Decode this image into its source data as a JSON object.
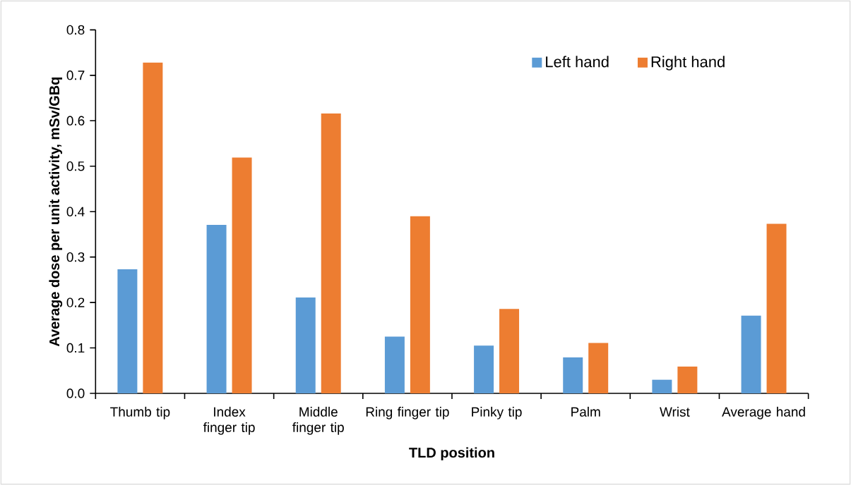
{
  "chart_data": {
    "type": "bar",
    "xlabel": "TLD position",
    "ylabel": "Average dose per unit activity, mSv/GBq",
    "categories": [
      "Thumb tip",
      "Index finger tip",
      "Middle finger tip",
      "Ring finger tip",
      "Pinky tip",
      "Palm",
      "Wrist",
      "Average hand"
    ],
    "series": [
      {
        "name": "Left hand",
        "color": "#5b9bd5",
        "values": [
          0.273,
          0.371,
          0.211,
          0.125,
          0.105,
          0.079,
          0.03,
          0.171
        ]
      },
      {
        "name": "Right hand",
        "color": "#ed7d31",
        "values": [
          0.728,
          0.519,
          0.616,
          0.39,
          0.186,
          0.111,
          0.059,
          0.373
        ]
      }
    ],
    "ylim": [
      0,
      0.8
    ],
    "yticks": [
      {
        "value": 0,
        "label": "0.0"
      },
      0.1,
      0.2,
      0.3,
      0.4,
      0.5,
      0.6,
      0.7,
      0.8
    ],
    "grid": false,
    "legend": "top right"
  }
}
